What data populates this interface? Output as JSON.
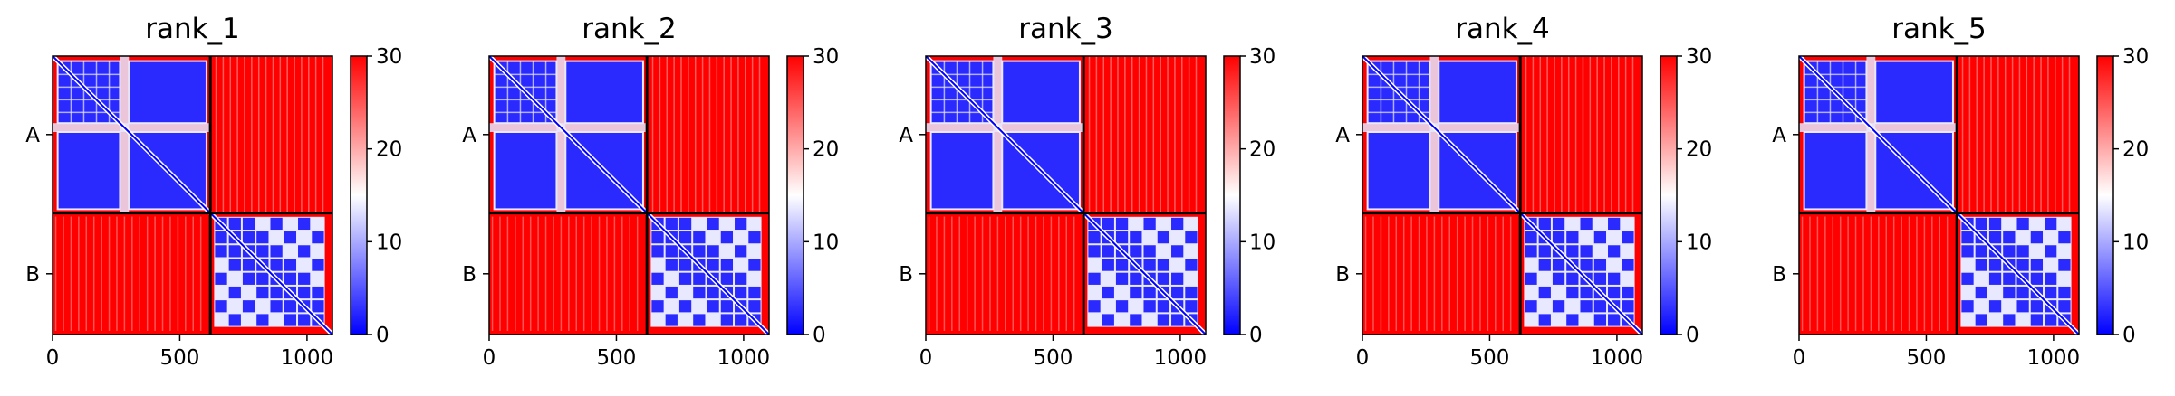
{
  "chart_data": [
    {
      "type": "heatmap",
      "title": "rank_1",
      "chains": [
        "A",
        "B"
      ],
      "chain_boundary": 620,
      "x_ticks": [
        0,
        500,
        1000
      ],
      "xlim": [
        0,
        1100
      ],
      "ylim": [
        0,
        1100
      ],
      "colorbar": {
        "vmin": 0,
        "vmax": 30,
        "ticks": [
          0,
          10,
          20,
          30
        ],
        "colormap": "bwr"
      }
    },
    {
      "type": "heatmap",
      "title": "rank_2",
      "chains": [
        "A",
        "B"
      ],
      "chain_boundary": 620,
      "x_ticks": [
        0,
        500,
        1000
      ],
      "xlim": [
        0,
        1100
      ],
      "ylim": [
        0,
        1100
      ],
      "colorbar": {
        "vmin": 0,
        "vmax": 30,
        "ticks": [
          0,
          10,
          20,
          30
        ],
        "colormap": "bwr"
      }
    },
    {
      "type": "heatmap",
      "title": "rank_3",
      "chains": [
        "A",
        "B"
      ],
      "chain_boundary": 620,
      "x_ticks": [
        0,
        500,
        1000
      ],
      "xlim": [
        0,
        1100
      ],
      "ylim": [
        0,
        1100
      ],
      "colorbar": {
        "vmin": 0,
        "vmax": 30,
        "ticks": [
          0,
          10,
          20,
          30
        ],
        "colormap": "bwr"
      }
    },
    {
      "type": "heatmap",
      "title": "rank_4",
      "chains": [
        "A",
        "B"
      ],
      "chain_boundary": 620,
      "x_ticks": [
        0,
        500,
        1000
      ],
      "xlim": [
        0,
        1100
      ],
      "ylim": [
        0,
        1100
      ],
      "colorbar": {
        "vmin": 0,
        "vmax": 30,
        "ticks": [
          0,
          10,
          20,
          30
        ],
        "colormap": "bwr"
      }
    },
    {
      "type": "heatmap",
      "title": "rank_5",
      "chains": [
        "A",
        "B"
      ],
      "chain_boundary": 620,
      "x_ticks": [
        0,
        500,
        1000
      ],
      "xlim": [
        0,
        1100
      ],
      "ylim": [
        0,
        1100
      ],
      "colorbar": {
        "vmin": 0,
        "vmax": 30,
        "ticks": [
          0,
          10,
          20,
          30
        ],
        "colormap": "bwr"
      }
    }
  ],
  "colors": {
    "low": "#0000ff",
    "mid": "#ffffff",
    "high": "#ff0000",
    "block_low": "#2a2aff",
    "block_edge": "#e8e8ff",
    "stripe": "#ff9a9a"
  }
}
